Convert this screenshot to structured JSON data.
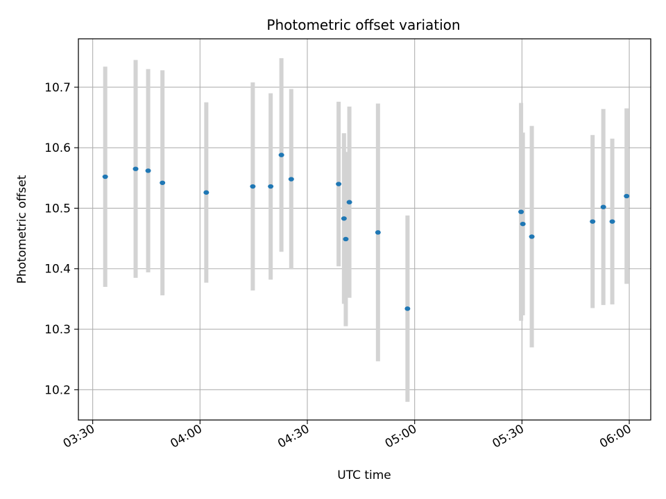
{
  "chart_data": {
    "type": "scatter",
    "title": "Photometric offset variation",
    "xlabel": "UTC time",
    "ylabel": "Photometric offset",
    "x_axis_kind": "time",
    "xlim": [
      "03:26",
      "06:06"
    ],
    "ylim": [
      10.15,
      10.78
    ],
    "xticks": [
      "03:30",
      "04:00",
      "04:30",
      "05:00",
      "05:30",
      "06:00"
    ],
    "yticks": [
      10.2,
      10.3,
      10.4,
      10.5,
      10.6,
      10.7
    ],
    "grid": true,
    "colors": {
      "marker": "#1f77b4",
      "errorbar": "#d3d3d3",
      "grid": "#b0b0b0"
    },
    "series": [
      {
        "points": [
          {
            "x": "03:33:30",
            "y": 10.552,
            "err": 0.182
          },
          {
            "x": "03:42:00",
            "y": 10.565,
            "err": 0.18
          },
          {
            "x": "03:45:30",
            "y": 10.562,
            "err": 0.168
          },
          {
            "x": "03:49:30",
            "y": 10.542,
            "err": 0.186
          },
          {
            "x": "04:01:45",
            "y": 10.526,
            "err": 0.149
          },
          {
            "x": "04:14:45",
            "y": 10.536,
            "err": 0.172
          },
          {
            "x": "04:19:45",
            "y": 10.536,
            "err": 0.154
          },
          {
            "x": "04:22:45",
            "y": 10.588,
            "err": 0.16
          },
          {
            "x": "04:25:30",
            "y": 10.548,
            "err": 0.149
          },
          {
            "x": "04:38:45",
            "y": 10.54,
            "err": 0.136
          },
          {
            "x": "04:40:15",
            "y": 10.483,
            "err": 0.141
          },
          {
            "x": "04:40:45",
            "y": 10.449,
            "err": 0.144
          },
          {
            "x": "04:41:45",
            "y": 10.51,
            "err": 0.158
          },
          {
            "x": "04:49:45",
            "y": 10.46,
            "err": 0.213
          },
          {
            "x": "04:58:00",
            "y": 10.334,
            "err": 0.154
          },
          {
            "x": "05:29:45",
            "y": 10.494,
            "err": 0.18
          },
          {
            "x": "05:30:15",
            "y": 10.474,
            "err": 0.151
          },
          {
            "x": "05:32:45",
            "y": 10.453,
            "err": 0.183
          },
          {
            "x": "05:49:45",
            "y": 10.478,
            "err": 0.143
          },
          {
            "x": "05:52:45",
            "y": 10.502,
            "err": 0.162
          },
          {
            "x": "05:55:15",
            "y": 10.478,
            "err": 0.137
          },
          {
            "x": "05:59:15",
            "y": 10.52,
            "err": 0.145
          }
        ]
      }
    ]
  }
}
